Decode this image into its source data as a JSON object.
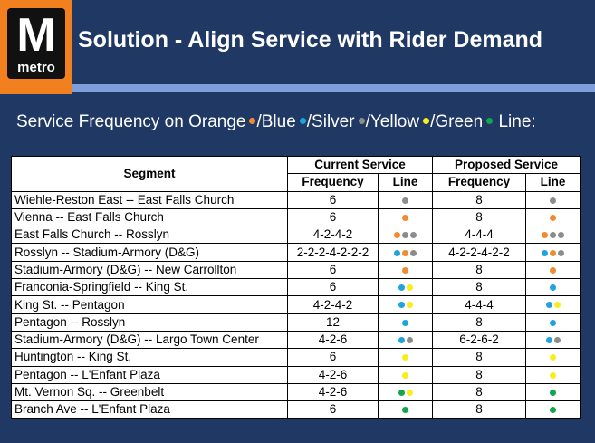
{
  "header": {
    "logo_text": "M",
    "logo_word": "metro",
    "title": "Solution - Align Service with Rider Demand"
  },
  "subtitle": {
    "parts": [
      {
        "text": "Service Frequency on Orange",
        "dot": "orange"
      },
      {
        "text": "/Blue",
        "dot": "blue"
      },
      {
        "text": "/Silver",
        "dot": "silver"
      },
      {
        "text": "/Yellow",
        "dot": "yellow"
      },
      {
        "text": "/Green",
        "dot": "green"
      },
      {
        "text": " Line:",
        "dot": null
      }
    ]
  },
  "colors": {
    "orange": "#f28b30",
    "blue": "#1fa3dd",
    "silver": "#8c8c8c",
    "yellow": "#f7ee1b",
    "green": "#12a64a",
    "background": "#1f3864",
    "stripe": "#7f9fda",
    "logo": "#f3801f"
  },
  "table": {
    "headers": {
      "segment": "Segment",
      "current": "Current Service",
      "proposed": "Proposed Service",
      "frequency": "Frequency",
      "line": "Line"
    },
    "rows": [
      {
        "segment": "Wiehle-Reston East -- East Falls Church",
        "cur_freq": "6",
        "cur_lines": [
          "silver"
        ],
        "prop_freq": "8",
        "prop_lines": [
          "silver"
        ]
      },
      {
        "segment": "Vienna -- East Falls Church",
        "cur_freq": "6",
        "cur_lines": [
          "orange"
        ],
        "prop_freq": "8",
        "prop_lines": [
          "orange"
        ]
      },
      {
        "segment": "East Falls Church -- Rosslyn",
        "cur_freq": "4-2-4-2",
        "cur_lines": [
          "orange",
          "silver",
          "silver"
        ],
        "prop_freq": "4-4-4",
        "prop_lines": [
          "orange",
          "silver",
          "silver"
        ]
      },
      {
        "segment": "Rosslyn -- Stadium-Armory (D&G)",
        "cur_freq": "2-2-2-4-2-2-2",
        "cur_lines": [
          "blue",
          "orange",
          "silver"
        ],
        "prop_freq": "4-2-2-4-2-2",
        "prop_lines": [
          "blue",
          "orange",
          "silver"
        ]
      },
      {
        "segment": "Stadium-Armory (D&G) -- New Carrollton",
        "cur_freq": "6",
        "cur_lines": [
          "orange"
        ],
        "prop_freq": "8",
        "prop_lines": [
          "orange"
        ]
      },
      {
        "segment": "Franconia-Springfield -- King St.",
        "cur_freq": "6",
        "cur_lines": [
          "blue",
          "yellow"
        ],
        "prop_freq": "8",
        "prop_lines": [
          "blue"
        ]
      },
      {
        "segment": "King St. -- Pentagon",
        "cur_freq": "4-2-4-2",
        "cur_lines": [
          "blue",
          "yellow"
        ],
        "prop_freq": "4-4-4",
        "prop_lines": [
          "blue",
          "yellow"
        ]
      },
      {
        "segment": "Pentagon -- Rosslyn",
        "cur_freq": "12",
        "cur_lines": [
          "blue"
        ],
        "prop_freq": "8",
        "prop_lines": [
          "blue"
        ]
      },
      {
        "segment": "Stadium-Armory (D&G) -- Largo Town Center",
        "cur_freq": "4-2-6",
        "cur_lines": [
          "blue",
          "silver"
        ],
        "prop_freq": "6-2-6-2",
        "prop_lines": [
          "blue",
          "silver"
        ]
      },
      {
        "segment": "Huntington -- King St.",
        "cur_freq": "6",
        "cur_lines": [
          "yellow"
        ],
        "prop_freq": "8",
        "prop_lines": [
          "yellow"
        ]
      },
      {
        "segment": "Pentagon -- L'Enfant Plaza",
        "cur_freq": "4-2-6",
        "cur_lines": [
          "yellow"
        ],
        "prop_freq": "8",
        "prop_lines": [
          "yellow"
        ]
      },
      {
        "segment": "Mt. Vernon Sq. -- Greenbelt",
        "cur_freq": "4-2-6",
        "cur_lines": [
          "green",
          "yellow"
        ],
        "prop_freq": "8",
        "prop_lines": [
          "green"
        ]
      },
      {
        "segment": "Branch Ave -- L'Enfant Plaza",
        "cur_freq": "6",
        "cur_lines": [
          "green"
        ],
        "prop_freq": "8",
        "prop_lines": [
          "green"
        ]
      }
    ]
  }
}
